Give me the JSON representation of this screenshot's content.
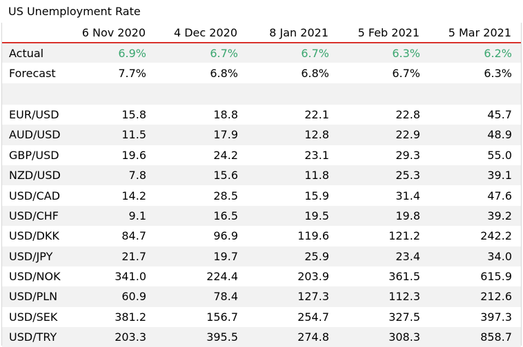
{
  "chart_data": {
    "type": "table",
    "title": "US Unemployment Rate",
    "columns": [
      "6 Nov 2020",
      "4 Dec 2020",
      "8 Jan 2021",
      "5 Feb 2021",
      "5 Mar 2021"
    ],
    "rows": [
      {
        "label": "Actual",
        "values": [
          "6.9%",
          "6.7%",
          "6.7%",
          "6.3%",
          "6.2%"
        ],
        "highlight": true
      },
      {
        "label": "Forecast",
        "values": [
          "7.7%",
          "6.8%",
          "6.8%",
          "6.7%",
          "6.3%"
        ]
      },
      {
        "label": "EUR/USD",
        "values": [
          "15.8",
          "18.8",
          "22.1",
          "22.8",
          "45.7"
        ]
      },
      {
        "label": "AUD/USD",
        "values": [
          "11.5",
          "17.9",
          "12.8",
          "22.9",
          "48.9"
        ]
      },
      {
        "label": "GBP/USD",
        "values": [
          "19.6",
          "24.2",
          "23.1",
          "29.3",
          "55.0"
        ]
      },
      {
        "label": "NZD/USD",
        "values": [
          "7.8",
          "15.6",
          "11.8",
          "25.3",
          "39.1"
        ]
      },
      {
        "label": "USD/CAD",
        "values": [
          "14.2",
          "28.5",
          "15.9",
          "31.4",
          "47.6"
        ]
      },
      {
        "label": "USD/CHF",
        "values": [
          "9.1",
          "16.5",
          "19.5",
          "19.8",
          "39.2"
        ]
      },
      {
        "label": "USD/DKK",
        "values": [
          "84.7",
          "96.9",
          "119.6",
          "121.2",
          "242.2"
        ]
      },
      {
        "label": "USD/JPY",
        "values": [
          "21.7",
          "19.7",
          "25.9",
          "23.4",
          "34.0"
        ]
      },
      {
        "label": "USD/NOK",
        "values": [
          "341.0",
          "224.4",
          "203.9",
          "361.5",
          "615.9"
        ]
      },
      {
        "label": "USD/PLN",
        "values": [
          "60.9",
          "78.4",
          "127.3",
          "112.3",
          "212.6"
        ]
      },
      {
        "label": "USD/SEK",
        "values": [
          "381.2",
          "156.7",
          "254.7",
          "327.5",
          "397.3"
        ]
      },
      {
        "label": "USD/TRY",
        "values": [
          "203.3",
          "395.5",
          "274.8",
          "308.3",
          "858.7"
        ]
      }
    ]
  },
  "colors": {
    "header_rule": "#d9312b",
    "actual_value": "#3aa66f",
    "row_shade": "#f2f2f2"
  }
}
